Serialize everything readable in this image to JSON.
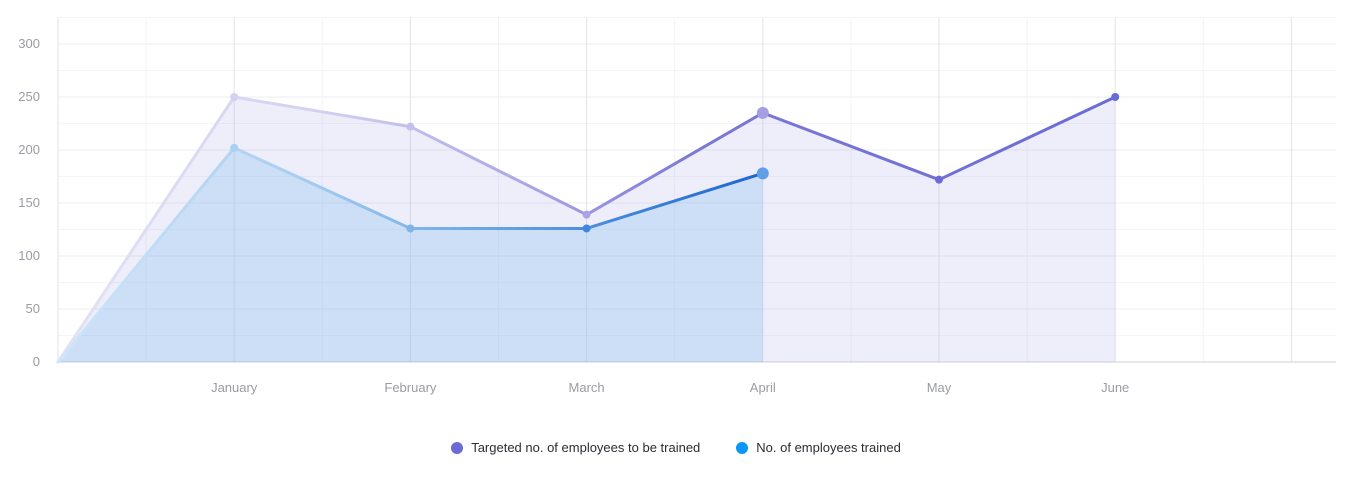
{
  "chart_data": {
    "type": "area",
    "categories": [
      "",
      "January",
      "February",
      "March",
      "April",
      "May",
      "June"
    ],
    "yticks": [
      0,
      50,
      100,
      150,
      200,
      250,
      300
    ],
    "ylim": [
      0,
      325
    ],
    "grid": true,
    "legend_position": "bottom-center",
    "series": [
      {
        "name": "Targeted no. of employees to be trained",
        "color": "#6b6bd6",
        "values": [
          0,
          250,
          222,
          139,
          235,
          172,
          250
        ]
      },
      {
        "name": "No. of employees trained",
        "color": "#0a97f5",
        "values": [
          0,
          202,
          126,
          126,
          178,
          null,
          null
        ]
      }
    ]
  }
}
